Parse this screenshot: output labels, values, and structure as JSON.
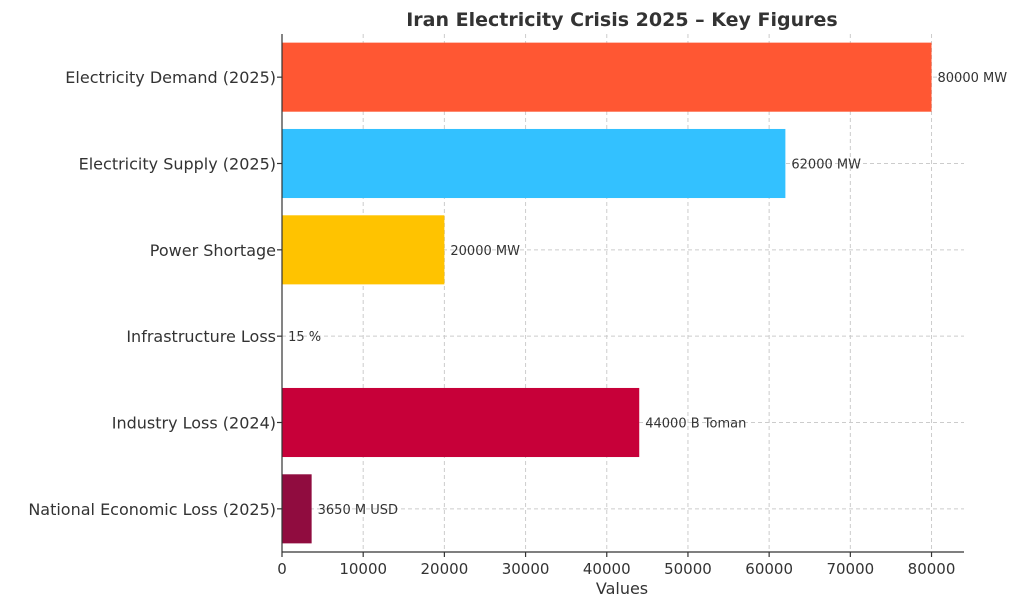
{
  "chart_data": {
    "type": "bar",
    "orientation": "horizontal",
    "title": "Iran Electricity Crisis 2025 – Key Figures",
    "xlabel": "Values",
    "ylabel": "",
    "xlim": [
      0,
      84000
    ],
    "xticks": [
      0,
      10000,
      20000,
      30000,
      40000,
      50000,
      60000,
      70000,
      80000
    ],
    "grid": true,
    "categories": [
      "Electricity Demand (2025)",
      "Electricity Supply (2025)",
      "Power Shortage",
      "Infrastructure Loss",
      "Industry Loss (2024)",
      "National Economic Loss (2025)"
    ],
    "values": [
      80000,
      62000,
      20000,
      15,
      44000,
      3650
    ],
    "value_labels": [
      "80000 MW",
      "62000 MW",
      "20000 MW",
      "15 %",
      "44000 B Toman",
      "3650 M USD"
    ],
    "colors": [
      "#ff5733",
      "#33c1ff",
      "#ffc300",
      "#c70039",
      "#c70039",
      "#900c3f"
    ]
  }
}
